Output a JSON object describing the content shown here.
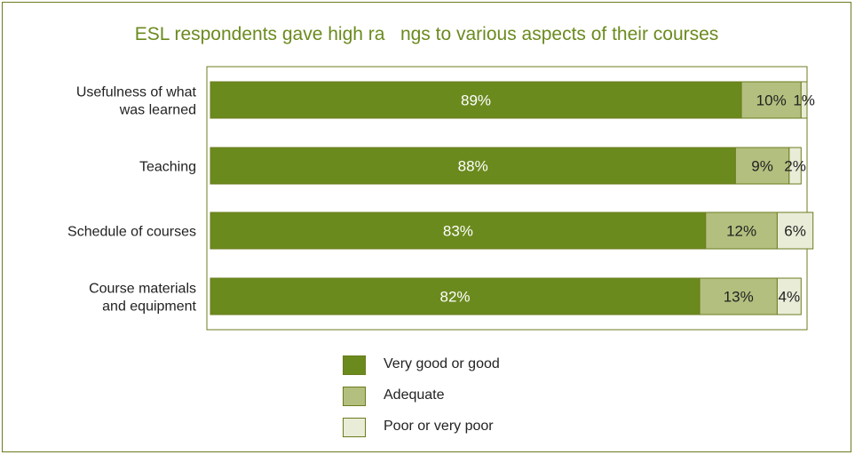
{
  "chart_data": {
    "type": "bar",
    "orientation": "horizontal",
    "stacked": true,
    "title": "ESL respondents gave high ra   ngs to various aspects of their courses",
    "categories": [
      [
        "Usefulness of what",
        "was learned"
      ],
      [
        "Teaching"
      ],
      [
        "Schedule of courses"
      ],
      [
        "Course materials",
        "and equipment"
      ]
    ],
    "series": [
      {
        "name": "Very good or good",
        "values": [
          89,
          88,
          83,
          82
        ],
        "labels": [
          "89%",
          "88%",
          "83%",
          "82%"
        ],
        "color": "#6b8a1e",
        "label_color": "#ffffff"
      },
      {
        "name": "Adequate",
        "values": [
          10,
          9,
          12,
          13
        ],
        "labels": [
          "10%",
          "9%",
          "12%",
          "13%"
        ],
        "color": "#b3bf7e",
        "label_color": "#222222"
      },
      {
        "name": "Poor or very poor",
        "values": [
          1,
          2,
          6,
          4
        ],
        "labels": [
          "1%",
          "2%",
          "6%",
          "4%"
        ],
        "color": "#e9ecd7",
        "label_color": "#222222"
      }
    ],
    "xlim": [
      0,
      100
    ],
    "grid": false,
    "legend_position": "bottom",
    "border_color": "#6b7c1f"
  }
}
